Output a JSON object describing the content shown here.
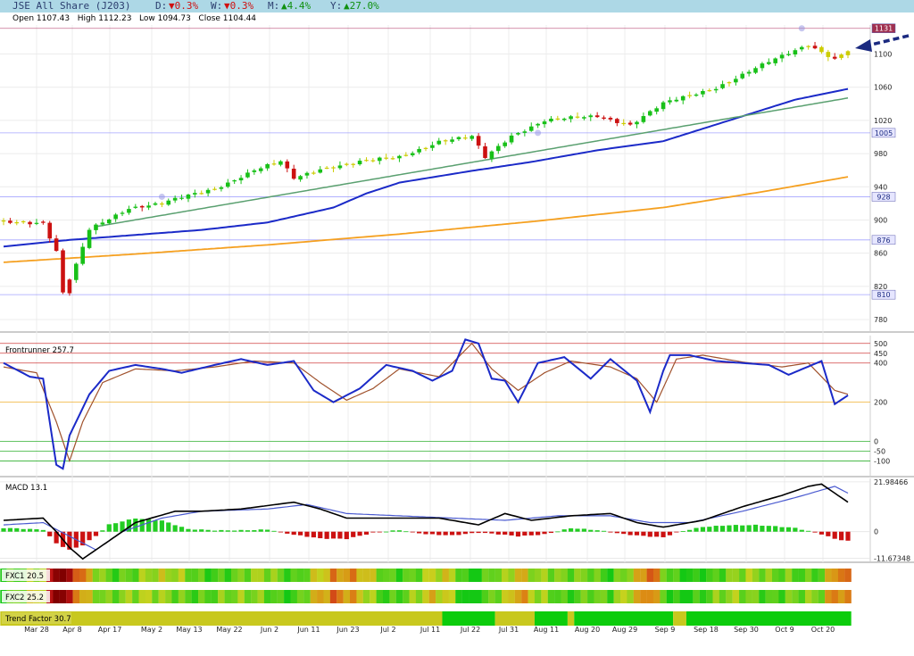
{
  "header": {
    "title": "JSE All Share (J203)",
    "day_label": "D:",
    "day_value": "▼0.3%",
    "week_label": "W:",
    "week_value": "▼0.3%",
    "month_label": "M:",
    "month_value": "▲4.4%",
    "year_label": "Y:",
    "year_value": "▲27.0%",
    "ohlc": "Open 1107.43   High 1112.23   Low 1094.73   Close 1104.44"
  },
  "colors": {
    "up_candle": "#18c018",
    "down_candle": "#cc1111",
    "neutral_candle": "#cccc00",
    "ma_blue": "#1b2ac8",
    "ma_orange": "#f5a020",
    "trend_green": "#5aa070",
    "fr_blue": "#1b2ac8",
    "fr_brown": "#a0522d",
    "header_bg": "#add8e6",
    "down_text": "#d01010",
    "up_text": "#109010"
  },
  "chart_data": {
    "type": "candlestick",
    "dates": [
      "Mar 28",
      "Apr 8",
      "Apr 17",
      "May 2",
      "May 13",
      "May 22",
      "Jun 2",
      "Jun 11",
      "Jun 23",
      "Jul 2",
      "Jul 11",
      "Jul 22",
      "Jul 31",
      "Aug 11",
      "Aug 20",
      "Aug 29",
      "Sep 9",
      "Sep 18",
      "Sep 30",
      "Oct 9",
      "Oct 20"
    ],
    "price_panel": {
      "ylim": [
        765,
        1135
      ],
      "ticks": [
        780,
        820,
        860,
        900,
        940,
        980,
        1020,
        1060,
        1100
      ],
      "horizontal_levels": [
        1131,
        1005,
        928,
        876,
        810
      ],
      "close_anchors": [
        [
          0,
          898
        ],
        [
          6,
          897
        ],
        [
          8,
          862
        ],
        [
          9,
          812
        ],
        [
          11,
          845
        ],
        [
          13,
          888
        ],
        [
          19,
          915
        ],
        [
          24,
          920
        ],
        [
          32,
          938
        ],
        [
          38,
          960
        ],
        [
          42,
          970
        ],
        [
          44,
          950
        ],
        [
          48,
          962
        ],
        [
          54,
          970
        ],
        [
          60,
          976
        ],
        [
          66,
          995
        ],
        [
          71,
          1000
        ],
        [
          73,
          975
        ],
        [
          77,
          1002
        ],
        [
          82,
          1020
        ],
        [
          90,
          1025
        ],
        [
          95,
          1015
        ],
        [
          100,
          1040
        ],
        [
          108,
          1060
        ],
        [
          116,
          1090
        ],
        [
          122,
          1112
        ],
        [
          126,
          1094
        ],
        [
          128,
          1104
        ]
      ],
      "ma_blue": [
        [
          0,
          868
        ],
        [
          10,
          876
        ],
        [
          20,
          882
        ],
        [
          30,
          888
        ],
        [
          40,
          897
        ],
        [
          50,
          915
        ],
        [
          55,
          932
        ],
        [
          60,
          945
        ],
        [
          70,
          958
        ],
        [
          80,
          970
        ],
        [
          90,
          984
        ],
        [
          100,
          995
        ],
        [
          110,
          1020
        ],
        [
          120,
          1045
        ],
        [
          128,
          1058
        ]
      ],
      "ma_orange": [
        [
          0,
          849
        ],
        [
          20,
          859
        ],
        [
          40,
          870
        ],
        [
          60,
          883
        ],
        [
          80,
          898
        ],
        [
          100,
          915
        ],
        [
          115,
          934
        ],
        [
          128,
          952
        ]
      ],
      "trend_line": [
        [
          14,
          892
        ],
        [
          128,
          1047
        ]
      ]
    },
    "frontrunner": {
      "label": "Frontrunner",
      "value": "257.7",
      "ylim": [
        -180,
        540
      ],
      "levels": [
        500,
        450,
        400,
        200,
        0,
        -50,
        -100
      ],
      "level_labels": [
        "500",
        "450",
        "400",
        "200",
        "0",
        "-50",
        "-100"
      ],
      "blue": [
        [
          0,
          400
        ],
        [
          4,
          330
        ],
        [
          6,
          320
        ],
        [
          8,
          -120
        ],
        [
          9,
          -140
        ],
        [
          10,
          30
        ],
        [
          13,
          240
        ],
        [
          16,
          360
        ],
        [
          20,
          390
        ],
        [
          24,
          370
        ],
        [
          27,
          350
        ],
        [
          32,
          390
        ],
        [
          36,
          420
        ],
        [
          40,
          390
        ],
        [
          44,
          410
        ],
        [
          47,
          260
        ],
        [
          50,
          200
        ],
        [
          54,
          270
        ],
        [
          58,
          390
        ],
        [
          62,
          360
        ],
        [
          65,
          310
        ],
        [
          68,
          360
        ],
        [
          70,
          520
        ],
        [
          72,
          500
        ],
        [
          74,
          320
        ],
        [
          76,
          310
        ],
        [
          78,
          200
        ],
        [
          81,
          400
        ],
        [
          85,
          430
        ],
        [
          89,
          320
        ],
        [
          92,
          420
        ],
        [
          96,
          310
        ],
        [
          98,
          150
        ],
        [
          100,
          360
        ],
        [
          101,
          440
        ],
        [
          104,
          440
        ],
        [
          108,
          410
        ],
        [
          112,
          400
        ],
        [
          116,
          390
        ],
        [
          119,
          340
        ],
        [
          124,
          410
        ],
        [
          126,
          190
        ],
        [
          128,
          235
        ]
      ],
      "brown": [
        [
          0,
          380
        ],
        [
          5,
          350
        ],
        [
          8,
          100
        ],
        [
          10,
          -100
        ],
        [
          12,
          100
        ],
        [
          15,
          300
        ],
        [
          20,
          370
        ],
        [
          26,
          360
        ],
        [
          32,
          380
        ],
        [
          38,
          410
        ],
        [
          44,
          400
        ],
        [
          48,
          300
        ],
        [
          52,
          210
        ],
        [
          56,
          270
        ],
        [
          60,
          370
        ],
        [
          66,
          330
        ],
        [
          71,
          500
        ],
        [
          74,
          370
        ],
        [
          78,
          260
        ],
        [
          82,
          350
        ],
        [
          86,
          410
        ],
        [
          92,
          380
        ],
        [
          96,
          320
        ],
        [
          99,
          200
        ],
        [
          102,
          420
        ],
        [
          106,
          440
        ],
        [
          112,
          405
        ],
        [
          118,
          380
        ],
        [
          122,
          400
        ],
        [
          126,
          260
        ],
        [
          128,
          240
        ]
      ]
    },
    "macd": {
      "label": "MACD",
      "value": "13.1",
      "ylim": [
        -13.5,
        23.5
      ],
      "ticks": [
        21.98466,
        0,
        -11.67348
      ],
      "tick_labels": [
        "21.98466",
        "0",
        "-11.67348"
      ],
      "line": [
        [
          0,
          5
        ],
        [
          6,
          6
        ],
        [
          8,
          0
        ],
        [
          10,
          -7
        ],
        [
          12,
          -12
        ],
        [
          15,
          -6
        ],
        [
          20,
          4
        ],
        [
          26,
          9
        ],
        [
          30,
          9
        ],
        [
          36,
          10
        ],
        [
          44,
          13
        ],
        [
          48,
          10
        ],
        [
          52,
          6
        ],
        [
          60,
          6
        ],
        [
          66,
          6
        ],
        [
          72,
          3
        ],
        [
          76,
          8
        ],
        [
          80,
          5
        ],
        [
          86,
          7
        ],
        [
          92,
          8
        ],
        [
          96,
          4
        ],
        [
          100,
          2
        ],
        [
          106,
          5
        ],
        [
          112,
          11
        ],
        [
          118,
          16
        ],
        [
          122,
          20
        ],
        [
          124,
          21
        ],
        [
          126,
          17
        ],
        [
          128,
          13
        ]
      ],
      "signal": [
        [
          0,
          3
        ],
        [
          6,
          4
        ],
        [
          10,
          -2
        ],
        [
          14,
          -8
        ],
        [
          18,
          0
        ],
        [
          24,
          6
        ],
        [
          30,
          9
        ],
        [
          40,
          10
        ],
        [
          46,
          12
        ],
        [
          52,
          8
        ],
        [
          60,
          7
        ],
        [
          68,
          6
        ],
        [
          76,
          5
        ],
        [
          84,
          7
        ],
        [
          92,
          7
        ],
        [
          98,
          4
        ],
        [
          104,
          4
        ],
        [
          112,
          9
        ],
        [
          120,
          15
        ],
        [
          126,
          20
        ],
        [
          128,
          17
        ]
      ],
      "histogram": [
        [
          0,
          1.5
        ],
        [
          6,
          1
        ],
        [
          8,
          -5
        ],
        [
          10,
          -8
        ],
        [
          12,
          -6
        ],
        [
          14,
          -2
        ],
        [
          16,
          3
        ],
        [
          20,
          6
        ],
        [
          24,
          5
        ],
        [
          28,
          1
        ],
        [
          32,
          0.5
        ],
        [
          40,
          1
        ],
        [
          44,
          -1.5
        ],
        [
          48,
          -3
        ],
        [
          52,
          -3
        ],
        [
          56,
          -0.5
        ],
        [
          60,
          0.5
        ],
        [
          64,
          -1
        ],
        [
          68,
          -1.5
        ],
        [
          72,
          -0.5
        ],
        [
          74,
          -1
        ],
        [
          78,
          -2
        ],
        [
          82,
          -1
        ],
        [
          86,
          1.5
        ],
        [
          90,
          0.5
        ],
        [
          94,
          -1
        ],
        [
          98,
          -2
        ],
        [
          100,
          -2.5
        ],
        [
          102,
          -0.5
        ],
        [
          106,
          2
        ],
        [
          110,
          3
        ],
        [
          114,
          3
        ],
        [
          118,
          2
        ],
        [
          120,
          1.5
        ],
        [
          124,
          -1
        ],
        [
          126,
          -3
        ],
        [
          128,
          -4
        ]
      ]
    },
    "fxc1": {
      "label": "FXC1",
      "value": "20.5"
    },
    "fxc2": {
      "label": "FXC2",
      "value": "25.2"
    },
    "trend_factor": {
      "label": "Trend Factor",
      "value": "30.7",
      "segments": [
        [
          0,
          66,
          "y"
        ],
        [
          67,
          74,
          "g"
        ],
        [
          75,
          80,
          "y"
        ],
        [
          81,
          85,
          "g"
        ],
        [
          86,
          86,
          "y"
        ],
        [
          87,
          101,
          "g"
        ],
        [
          102,
          103,
          "y"
        ],
        [
          104,
          128,
          "g"
        ]
      ]
    }
  },
  "annotations": {
    "arrow": "blue-dashed-arrow"
  }
}
